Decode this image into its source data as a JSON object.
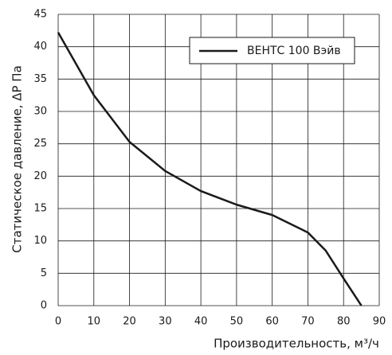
{
  "chart_data": {
    "type": "line",
    "x_label": "Производительность, м³/ч",
    "y_label": "Статическое давление, ΔP Па",
    "x": [
      0,
      10,
      20,
      30,
      40,
      50,
      60,
      70,
      75,
      80,
      85
    ],
    "series": [
      {
        "name": "ВЕНТС 100 Вэйв",
        "color": "#1a1a1a",
        "values": [
          42.2,
          32.5,
          25.3,
          20.8,
          17.7,
          15.6,
          14,
          11.3,
          8.5,
          4.2,
          0
        ]
      }
    ],
    "xlim": [
      0,
      90
    ],
    "xticks": [
      0,
      10,
      20,
      30,
      40,
      50,
      60,
      70,
      80,
      90
    ],
    "ylim": [
      0,
      45
    ],
    "yticks": [
      0,
      5,
      10,
      15,
      20,
      25,
      30,
      35,
      40,
      45
    ],
    "grid": true,
    "legend": "top-right"
  }
}
